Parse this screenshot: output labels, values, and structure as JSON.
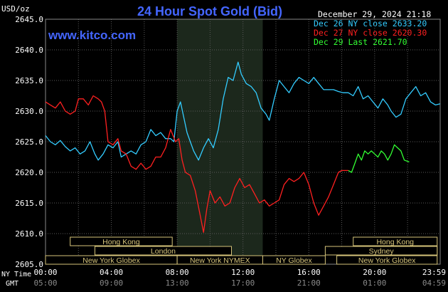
{
  "chart_data": {
    "type": "line",
    "title": "24 Hour Spot Gold (Bid)",
    "ylabel": "USD/oz",
    "watermark": "www.kitco.com",
    "timestamp": "December 29, 2024 21:18",
    "ylim": [
      2605.0,
      2645.0
    ],
    "y_ticks": [
      "2645.0",
      "2640.0",
      "2635.0",
      "2630.0",
      "2625.0",
      "2620.0",
      "2615.0",
      "2610.0",
      "2605.0"
    ],
    "x_range_hours": [
      0,
      23.9833
    ],
    "x_time_label_1": "NY Time",
    "x_time_label_2": "GMT",
    "x_ticks_ny": [
      "00:00",
      "04:00",
      "08:00",
      "12:00",
      "16:00",
      "20:00",
      "23:59"
    ],
    "x_ticks_gmt": [
      "05:00",
      "09:00",
      "13:00",
      "17:00",
      "21:00",
      "01:00",
      "04:59"
    ],
    "legend": [
      {
        "label": "Dec 26 NY close 2633.20",
        "color": "#33ccff"
      },
      {
        "label": "Dec 27 NY close 2620.30",
        "color": "#ff2020"
      },
      {
        "label": "Dec 29 Last 2621.70",
        "color": "#33ff33"
      }
    ],
    "shaded_region_hours": [
      8.0,
      13.2
    ],
    "sessions": [
      {
        "name": "Hong Kong",
        "row": 0,
        "segments": [
          [
            1.5,
            7.7
          ],
          [
            18.7,
            23.8
          ]
        ]
      },
      {
        "name": "London",
        "row": 1,
        "segments": [
          [
            3.0,
            11.3
          ],
          [
            19.0,
            23.8
          ]
        ]
      },
      {
        "name": "Sydney",
        "row": 1,
        "segments": [
          [
            17.0,
            23.8
          ]
        ]
      },
      {
        "name": "New York Globex",
        "row": 2,
        "segments": [
          [
            0.0,
            8.0
          ],
          [
            17.7,
            23.8
          ]
        ]
      },
      {
        "name": "New York NYMEX",
        "row": 2,
        "segments": [
          [
            8.0,
            13.2
          ]
        ]
      },
      {
        "name": "NY Globex",
        "row": 2,
        "segments": [
          [
            13.2,
            17.0
          ]
        ]
      }
    ],
    "series": [
      {
        "name": "Dec 26",
        "color": "#33ccff",
        "points": [
          [
            0.0,
            2626.0
          ],
          [
            0.3,
            2625.0
          ],
          [
            0.6,
            2624.5
          ],
          [
            0.9,
            2625.2
          ],
          [
            1.2,
            2624.2
          ],
          [
            1.5,
            2623.5
          ],
          [
            1.8,
            2624.0
          ],
          [
            2.1,
            2623.0
          ],
          [
            2.4,
            2623.5
          ],
          [
            2.7,
            2625.0
          ],
          [
            3.0,
            2623.0
          ],
          [
            3.2,
            2622.0
          ],
          [
            3.5,
            2623.0
          ],
          [
            3.8,
            2624.5
          ],
          [
            4.1,
            2624.0
          ],
          [
            4.4,
            2625.0
          ],
          [
            4.6,
            2622.5
          ],
          [
            4.9,
            2623.0
          ],
          [
            5.2,
            2623.5
          ],
          [
            5.5,
            2623.0
          ],
          [
            5.8,
            2624.5
          ],
          [
            6.1,
            2625.0
          ],
          [
            6.4,
            2627.0
          ],
          [
            6.7,
            2626.0
          ],
          [
            7.0,
            2626.5
          ],
          [
            7.3,
            2625.5
          ],
          [
            7.6,
            2625.5
          ],
          [
            7.8,
            2625.0
          ],
          [
            8.0,
            2630.0
          ],
          [
            8.2,
            2631.5
          ],
          [
            8.4,
            2629.0
          ],
          [
            8.6,
            2626.5
          ],
          [
            8.8,
            2625.0
          ],
          [
            9.0,
            2623.5
          ],
          [
            9.3,
            2622.0
          ],
          [
            9.6,
            2624.0
          ],
          [
            9.9,
            2625.5
          ],
          [
            10.2,
            2624.0
          ],
          [
            10.5,
            2627.0
          ],
          [
            10.8,
            2632.0
          ],
          [
            11.1,
            2635.5
          ],
          [
            11.4,
            2635.0
          ],
          [
            11.7,
            2638.0
          ],
          [
            11.9,
            2636.0
          ],
          [
            12.2,
            2634.5
          ],
          [
            12.5,
            2634.0
          ],
          [
            12.8,
            2633.0
          ],
          [
            13.1,
            2630.5
          ],
          [
            13.4,
            2629.5
          ],
          [
            13.6,
            2628.5
          ],
          [
            13.9,
            2632.0
          ],
          [
            14.2,
            2635.0
          ],
          [
            14.5,
            2634.0
          ],
          [
            14.8,
            2633.0
          ],
          [
            15.1,
            2634.5
          ],
          [
            15.4,
            2635.5
          ],
          [
            15.7,
            2635.0
          ],
          [
            16.0,
            2634.5
          ],
          [
            16.3,
            2635.5
          ],
          [
            16.6,
            2634.5
          ],
          [
            16.9,
            2633.5
          ],
          [
            17.2,
            2633.5
          ],
          [
            17.5,
            2633.5
          ],
          [
            17.8,
            2633.2
          ],
          [
            18.1,
            2633.0
          ],
          [
            18.4,
            2633.0
          ],
          [
            18.7,
            2632.5
          ],
          [
            19.0,
            2634.0
          ],
          [
            19.3,
            2632.0
          ],
          [
            19.6,
            2632.5
          ],
          [
            19.9,
            2631.5
          ],
          [
            20.2,
            2630.5
          ],
          [
            20.5,
            2632.0
          ],
          [
            20.8,
            2631.0
          ],
          [
            21.0,
            2630.0
          ],
          [
            21.3,
            2629.0
          ],
          [
            21.6,
            2629.5
          ],
          [
            21.9,
            2632.0
          ],
          [
            22.2,
            2633.0
          ],
          [
            22.5,
            2634.0
          ],
          [
            22.8,
            2632.5
          ],
          [
            23.1,
            2633.0
          ],
          [
            23.4,
            2631.5
          ],
          [
            23.7,
            2631.0
          ],
          [
            23.98,
            2631.2
          ]
        ]
      },
      {
        "name": "Dec 27",
        "color": "#ff2020",
        "points": [
          [
            0.0,
            2631.5
          ],
          [
            0.3,
            2631.0
          ],
          [
            0.6,
            2630.5
          ],
          [
            0.9,
            2631.5
          ],
          [
            1.2,
            2630.0
          ],
          [
            1.5,
            2629.5
          ],
          [
            1.8,
            2630.0
          ],
          [
            2.0,
            2632.0
          ],
          [
            2.3,
            2632.0
          ],
          [
            2.6,
            2631.0
          ],
          [
            2.9,
            2632.5
          ],
          [
            3.2,
            2632.0
          ],
          [
            3.4,
            2631.5
          ],
          [
            3.6,
            2630.0
          ],
          [
            3.8,
            2625.0
          ],
          [
            4.1,
            2624.5
          ],
          [
            4.4,
            2625.5
          ],
          [
            4.6,
            2623.5
          ],
          [
            4.9,
            2623.0
          ],
          [
            5.2,
            2621.0
          ],
          [
            5.5,
            2620.5
          ],
          [
            5.8,
            2621.5
          ],
          [
            6.1,
            2620.5
          ],
          [
            6.4,
            2621.0
          ],
          [
            6.7,
            2622.5
          ],
          [
            7.0,
            2622.5
          ],
          [
            7.3,
            2624.0
          ],
          [
            7.6,
            2627.0
          ],
          [
            7.9,
            2625.0
          ],
          [
            8.1,
            2625.5
          ],
          [
            8.3,
            2622.0
          ],
          [
            8.5,
            2620.0
          ],
          [
            8.8,
            2619.5
          ],
          [
            9.1,
            2617.0
          ],
          [
            9.4,
            2613.0
          ],
          [
            9.6,
            2610.2
          ],
          [
            9.8,
            2614.0
          ],
          [
            10.0,
            2617.0
          ],
          [
            10.3,
            2615.0
          ],
          [
            10.6,
            2616.0
          ],
          [
            10.9,
            2614.5
          ],
          [
            11.2,
            2615.0
          ],
          [
            11.5,
            2617.5
          ],
          [
            11.8,
            2619.0
          ],
          [
            12.1,
            2617.5
          ],
          [
            12.4,
            2618.0
          ],
          [
            12.7,
            2616.5
          ],
          [
            13.0,
            2615.0
          ],
          [
            13.3,
            2615.5
          ],
          [
            13.6,
            2614.5
          ],
          [
            13.9,
            2615.0
          ],
          [
            14.2,
            2615.5
          ],
          [
            14.5,
            2618.0
          ],
          [
            14.8,
            2619.0
          ],
          [
            15.1,
            2618.5
          ],
          [
            15.4,
            2619.0
          ],
          [
            15.7,
            2620.0
          ],
          [
            16.0,
            2618.0
          ],
          [
            16.3,
            2615.0
          ],
          [
            16.6,
            2613.0
          ],
          [
            16.9,
            2614.5
          ],
          [
            17.2,
            2616.0
          ],
          [
            17.5,
            2618.0
          ],
          [
            17.8,
            2620.0
          ],
          [
            18.0,
            2620.3
          ],
          [
            18.4,
            2620.3
          ]
        ]
      },
      {
        "name": "Dec 29",
        "color": "#33ff33",
        "points": [
          [
            18.4,
            2620.3
          ],
          [
            18.6,
            2620.0
          ],
          [
            18.8,
            2621.5
          ],
          [
            19.0,
            2623.0
          ],
          [
            19.2,
            2622.0
          ],
          [
            19.4,
            2623.5
          ],
          [
            19.6,
            2623.0
          ],
          [
            19.8,
            2623.5
          ],
          [
            20.0,
            2623.0
          ],
          [
            20.2,
            2622.5
          ],
          [
            20.4,
            2623.5
          ],
          [
            20.6,
            2623.0
          ],
          [
            20.8,
            2622.0
          ],
          [
            21.0,
            2623.0
          ],
          [
            21.2,
            2624.5
          ],
          [
            21.4,
            2624.0
          ],
          [
            21.6,
            2623.5
          ],
          [
            21.8,
            2622.0
          ],
          [
            22.0,
            2621.8
          ],
          [
            22.1,
            2621.7
          ]
        ]
      }
    ]
  }
}
